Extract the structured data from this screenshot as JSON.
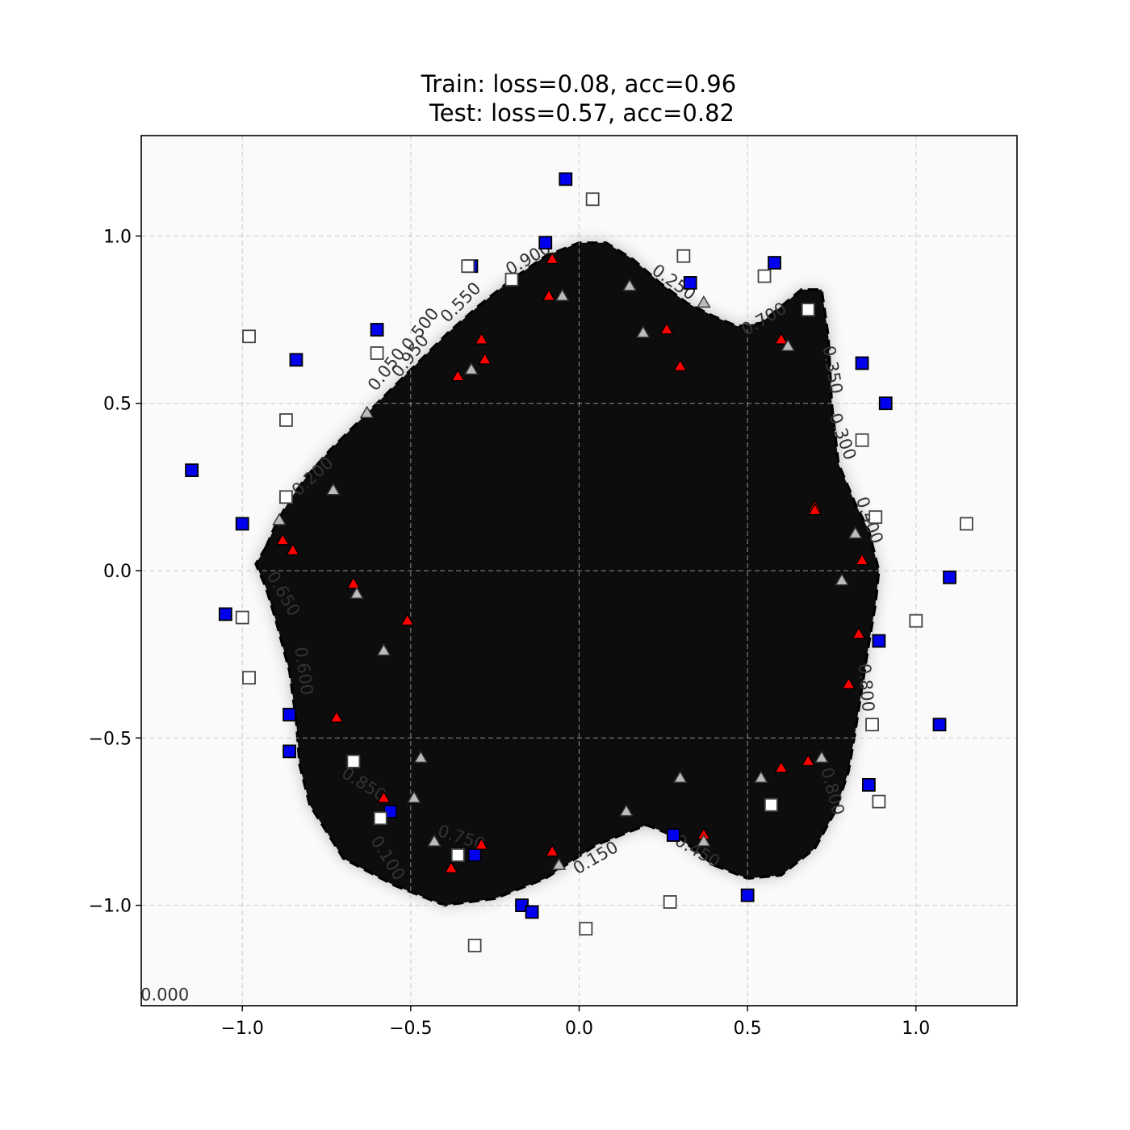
{
  "chart_data": {
    "type": "scatter",
    "title_lines": [
      "Train: loss=0.08, acc=0.96",
      "Test: loss=0.57, acc=0.82"
    ],
    "xlabel": "",
    "ylabel": "",
    "xlim": [
      -1.3,
      1.3
    ],
    "ylim": [
      -1.3,
      1.3
    ],
    "xticks": [
      {
        "value": -1.0,
        "label": "−1.0"
      },
      {
        "value": -0.5,
        "label": "−0.5"
      },
      {
        "value": 0.0,
        "label": "0.0"
      },
      {
        "value": 0.5,
        "label": "0.5"
      },
      {
        "value": 1.0,
        "label": "1.0"
      }
    ],
    "yticks": [
      {
        "value": 1.0,
        "label": "1.0"
      },
      {
        "value": 0.5,
        "label": "0.5"
      },
      {
        "value": 0.0,
        "label": "0.0"
      },
      {
        "value": -0.5,
        "label": "−0.5"
      },
      {
        "value": -1.0,
        "label": "−1.0"
      }
    ],
    "grid": true,
    "decision_region": {
      "fill_color": "#0d0d0d",
      "background_color": "#fafafa",
      "boundary_style": "black dashed",
      "boundary": [
        [
          -0.93,
          0.07
        ],
        [
          -0.9,
          0.14
        ],
        [
          -0.86,
          0.21
        ],
        [
          -0.81,
          0.28
        ],
        [
          -0.74,
          0.36
        ],
        [
          -0.66,
          0.44
        ],
        [
          -0.57,
          0.53
        ],
        [
          -0.48,
          0.62
        ],
        [
          -0.39,
          0.71
        ],
        [
          -0.3,
          0.79
        ],
        [
          -0.2,
          0.87
        ],
        [
          -0.1,
          0.94
        ],
        [
          0.0,
          0.98
        ],
        [
          0.08,
          0.98
        ],
        [
          0.16,
          0.93
        ],
        [
          0.24,
          0.86
        ],
        [
          0.32,
          0.8
        ],
        [
          0.4,
          0.76
        ],
        [
          0.47,
          0.73
        ],
        [
          0.54,
          0.74
        ],
        [
          0.6,
          0.79
        ],
        [
          0.66,
          0.84
        ],
        [
          0.72,
          0.84
        ],
        [
          0.74,
          0.7
        ],
        [
          0.75,
          0.5
        ],
        [
          0.77,
          0.32
        ],
        [
          0.82,
          0.2
        ],
        [
          0.86,
          0.12
        ],
        [
          0.89,
          0.0
        ],
        [
          0.88,
          -0.1
        ],
        [
          0.86,
          -0.22
        ],
        [
          0.84,
          -0.35
        ],
        [
          0.82,
          -0.48
        ],
        [
          0.8,
          -0.6
        ],
        [
          0.76,
          -0.72
        ],
        [
          0.7,
          -0.83
        ],
        [
          0.6,
          -0.91
        ],
        [
          0.5,
          -0.92
        ],
        [
          0.4,
          -0.88
        ],
        [
          0.3,
          -0.8
        ],
        [
          0.2,
          -0.76
        ],
        [
          0.05,
          -0.82
        ],
        [
          -0.1,
          -0.92
        ],
        [
          -0.25,
          -0.98
        ],
        [
          -0.4,
          -1.0
        ],
        [
          -0.55,
          -0.94
        ],
        [
          -0.7,
          -0.86
        ],
        [
          -0.8,
          -0.7
        ],
        [
          -0.83,
          -0.58
        ],
        [
          -0.84,
          -0.45
        ],
        [
          -0.86,
          -0.3
        ],
        [
          -0.9,
          -0.15
        ],
        [
          -0.93,
          -0.05
        ],
        [
          -0.96,
          0.02
        ]
      ]
    },
    "contour_labels": [
      {
        "x": -0.79,
        "y": 0.28,
        "text": "0.200",
        "angle": -42
      },
      {
        "x": -0.57,
        "y": 0.6,
        "text": "0.050",
        "angle": -52
      },
      {
        "x": -0.5,
        "y": 0.64,
        "text": "0.950",
        "angle": -52
      },
      {
        "x": -0.47,
        "y": 0.72,
        "text": "0.500",
        "angle": -52
      },
      {
        "x": -0.35,
        "y": 0.8,
        "text": "0.550",
        "angle": -45
      },
      {
        "x": -0.15,
        "y": 0.93,
        "text": "0.900",
        "angle": -30
      },
      {
        "x": 0.28,
        "y": 0.86,
        "text": "0.250",
        "angle": 35
      },
      {
        "x": 0.55,
        "y": 0.75,
        "text": "0.700",
        "angle": -30
      },
      {
        "x": 0.75,
        "y": 0.6,
        "text": "0.350",
        "angle": 80
      },
      {
        "x": 0.78,
        "y": 0.4,
        "text": "0.300",
        "angle": 70
      },
      {
        "x": 0.86,
        "y": 0.15,
        "text": "0.400",
        "angle": 70
      },
      {
        "x": -0.88,
        "y": -0.07,
        "text": "0.650",
        "angle": 60
      },
      {
        "x": -0.82,
        "y": -0.3,
        "text": "0.600",
        "angle": 82
      },
      {
        "x": -0.64,
        "y": -0.64,
        "text": "0.850",
        "angle": 32
      },
      {
        "x": -0.57,
        "y": -0.86,
        "text": "0.100",
        "angle": 58
      },
      {
        "x": -0.35,
        "y": -0.8,
        "text": "0.750",
        "angle": 18
      },
      {
        "x": 0.05,
        "y": -0.86,
        "text": "0.150",
        "angle": -30
      },
      {
        "x": 0.35,
        "y": -0.84,
        "text": "0.450",
        "angle": 30
      },
      {
        "x": 0.85,
        "y": -0.35,
        "text": "0.800",
        "angle": 85
      },
      {
        "x": 0.75,
        "y": -0.66,
        "text": "0.800",
        "angle": 75
      },
      {
        "x": -1.23,
        "y": -1.27,
        "text": "0.000",
        "angle": 0
      }
    ],
    "series": [
      {
        "marker": "square",
        "fill": "#0000ee",
        "edge": "#000000",
        "points": [
          [
            -0.04,
            1.17
          ],
          [
            -0.1,
            0.98
          ],
          [
            -0.32,
            0.91
          ],
          [
            -0.6,
            0.72
          ],
          [
            -0.84,
            0.63
          ],
          [
            -1.15,
            0.3
          ],
          [
            -1.0,
            0.14
          ],
          [
            -1.05,
            -0.13
          ],
          [
            -0.86,
            -0.43
          ],
          [
            -0.86,
            -0.54
          ],
          [
            -0.56,
            -0.72
          ],
          [
            -0.31,
            -0.85
          ],
          [
            -0.17,
            -1.0
          ],
          [
            -0.14,
            -1.02
          ],
          [
            0.28,
            -0.79
          ],
          [
            0.5,
            -0.97
          ],
          [
            0.33,
            0.86
          ],
          [
            0.58,
            0.92
          ],
          [
            0.84,
            0.62
          ],
          [
            0.91,
            0.5
          ],
          [
            1.1,
            -0.02
          ],
          [
            0.89,
            -0.21
          ],
          [
            1.07,
            -0.46
          ],
          [
            0.86,
            -0.64
          ]
        ]
      },
      {
        "marker": "square",
        "fill": "#ffffff",
        "edge": "#444444",
        "points": [
          [
            0.04,
            1.11
          ],
          [
            0.31,
            0.94
          ],
          [
            0.55,
            0.88
          ],
          [
            0.68,
            0.78
          ],
          [
            -0.33,
            0.91
          ],
          [
            -0.2,
            0.87
          ],
          [
            -0.98,
            0.7
          ],
          [
            -0.6,
            0.65
          ],
          [
            -0.87,
            0.45
          ],
          [
            -0.87,
            0.22
          ],
          [
            0.84,
            0.39
          ],
          [
            0.88,
            0.16
          ],
          [
            1.15,
            0.14
          ],
          [
            -1.0,
            -0.14
          ],
          [
            -0.98,
            -0.32
          ],
          [
            1.0,
            -0.15
          ],
          [
            0.87,
            -0.46
          ],
          [
            0.89,
            -0.69
          ],
          [
            -0.67,
            -0.57
          ],
          [
            -0.59,
            -0.74
          ],
          [
            -0.36,
            -0.85
          ],
          [
            0.27,
            -0.99
          ],
          [
            0.02,
            -1.07
          ],
          [
            -0.31,
            -1.12
          ],
          [
            0.57,
            -0.7
          ]
        ]
      },
      {
        "marker": "triangle",
        "fill": "#ff0000",
        "edge": "#000000",
        "points": [
          [
            -0.08,
            0.93
          ],
          [
            -0.09,
            0.82
          ],
          [
            0.26,
            0.72
          ],
          [
            0.3,
            0.61
          ],
          [
            0.6,
            0.69
          ],
          [
            -0.29,
            0.69
          ],
          [
            -0.28,
            0.63
          ],
          [
            -0.36,
            0.58
          ],
          [
            0.7,
            0.19
          ],
          [
            0.7,
            0.18
          ],
          [
            0.84,
            0.03
          ],
          [
            -0.88,
            0.09
          ],
          [
            -0.85,
            0.06
          ],
          [
            -0.67,
            -0.04
          ],
          [
            -0.51,
            -0.15
          ],
          [
            0.83,
            -0.19
          ],
          [
            0.8,
            -0.34
          ],
          [
            -0.72,
            -0.44
          ],
          [
            0.6,
            -0.59
          ],
          [
            0.68,
            -0.57
          ],
          [
            -0.58,
            -0.68
          ],
          [
            -0.29,
            -0.82
          ],
          [
            -0.08,
            -0.84
          ],
          [
            -0.38,
            -0.89
          ],
          [
            0.37,
            -0.79
          ]
        ]
      },
      {
        "marker": "triangle",
        "fill": "#bbbbbb",
        "edge": "#333333",
        "points": [
          [
            -0.05,
            0.82
          ],
          [
            0.15,
            0.85
          ],
          [
            0.19,
            0.71
          ],
          [
            0.37,
            0.8
          ],
          [
            -0.32,
            0.6
          ],
          [
            -0.63,
            0.47
          ],
          [
            0.62,
            0.67
          ],
          [
            -0.73,
            0.24
          ],
          [
            -0.89,
            0.15
          ],
          [
            0.82,
            0.11
          ],
          [
            0.78,
            -0.03
          ],
          [
            -0.66,
            -0.07
          ],
          [
            -0.58,
            -0.24
          ],
          [
            -0.47,
            -0.56
          ],
          [
            0.72,
            -0.56
          ],
          [
            0.54,
            -0.62
          ],
          [
            0.3,
            -0.62
          ],
          [
            -0.49,
            -0.68
          ],
          [
            -0.43,
            -0.81
          ],
          [
            0.14,
            -0.72
          ],
          [
            -0.06,
            -0.88
          ],
          [
            0.37,
            -0.81
          ]
        ]
      }
    ]
  }
}
